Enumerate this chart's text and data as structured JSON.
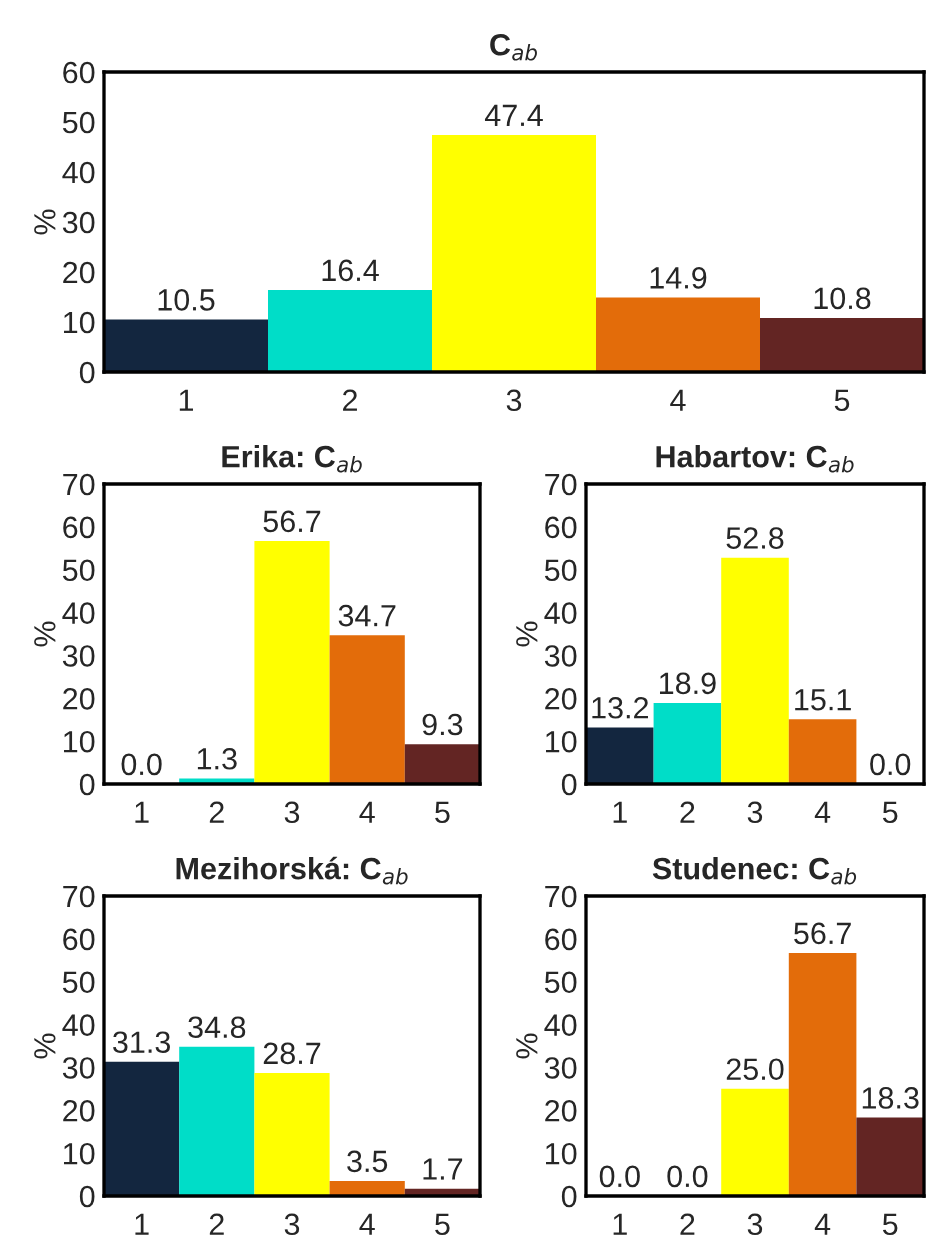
{
  "chart_data": [
    {
      "type": "bar",
      "title": "C$_{ab}$",
      "ylabel": "%",
      "categories": [
        "1",
        "2",
        "3",
        "4",
        "5"
      ],
      "values": [
        10.5,
        16.4,
        47.4,
        14.9,
        10.8
      ],
      "value_labels": [
        "10.5",
        "16.4",
        "47.4",
        "14.9",
        "10.8"
      ],
      "colors": [
        "#13263f",
        "#00ddc8",
        "#ffff00",
        "#e36c0a",
        "#632523"
      ],
      "ylim": [
        0,
        60
      ],
      "yticks": [
        0,
        10,
        20,
        30,
        40,
        50,
        60
      ],
      "grid": false,
      "legend": false
    },
    {
      "type": "bar",
      "title": "Erika: C$_{ab}$",
      "ylabel": "%",
      "categories": [
        "1",
        "2",
        "3",
        "4",
        "5"
      ],
      "values": [
        0.0,
        1.3,
        56.7,
        34.7,
        9.3
      ],
      "value_labels": [
        "0.0",
        "1.3",
        "56.7",
        "34.7",
        "9.3"
      ],
      "colors": [
        "#13263f",
        "#00ddc8",
        "#ffff00",
        "#e36c0a",
        "#632523"
      ],
      "ylim": [
        0,
        70
      ],
      "yticks": [
        0,
        10,
        20,
        30,
        40,
        50,
        60,
        70
      ],
      "grid": false,
      "legend": false
    },
    {
      "type": "bar",
      "title": "Habartov: C$_{ab}$",
      "ylabel": "%",
      "categories": [
        "1",
        "2",
        "3",
        "4",
        "5"
      ],
      "values": [
        13.2,
        18.9,
        52.8,
        15.1,
        0.0
      ],
      "value_labels": [
        "13.2",
        "18.9",
        "52.8",
        "15.1",
        "0.0"
      ],
      "colors": [
        "#13263f",
        "#00ddc8",
        "#ffff00",
        "#e36c0a",
        "#632523"
      ],
      "ylim": [
        0,
        70
      ],
      "yticks": [
        0,
        10,
        20,
        30,
        40,
        50,
        60,
        70
      ],
      "grid": false,
      "legend": false
    },
    {
      "type": "bar",
      "title": "Mezihorská: C$_{ab}$",
      "ylabel": "%",
      "categories": [
        "1",
        "2",
        "3",
        "4",
        "5"
      ],
      "values": [
        31.3,
        34.8,
        28.7,
        3.5,
        1.7
      ],
      "value_labels": [
        "31.3",
        "34.8",
        "28.7",
        "3.5",
        "1.7"
      ],
      "colors": [
        "#13263f",
        "#00ddc8",
        "#ffff00",
        "#e36c0a",
        "#632523"
      ],
      "ylim": [
        0,
        70
      ],
      "yticks": [
        0,
        10,
        20,
        30,
        40,
        50,
        60,
        70
      ],
      "grid": false,
      "legend": false
    },
    {
      "type": "bar",
      "title": "Studenec: C$_{ab}$",
      "ylabel": "%",
      "categories": [
        "1",
        "2",
        "3",
        "4",
        "5"
      ],
      "values": [
        0.0,
        0.0,
        25.0,
        56.7,
        18.3
      ],
      "value_labels": [
        "0.0",
        "0.0",
        "25.0",
        "56.7",
        "18.3"
      ],
      "colors": [
        "#13263f",
        "#00ddc8",
        "#ffff00",
        "#e36c0a",
        "#632523"
      ],
      "ylim": [
        0,
        70
      ],
      "yticks": [
        0,
        10,
        20,
        30,
        40,
        50,
        60,
        70
      ],
      "grid": false,
      "legend": false
    }
  ]
}
